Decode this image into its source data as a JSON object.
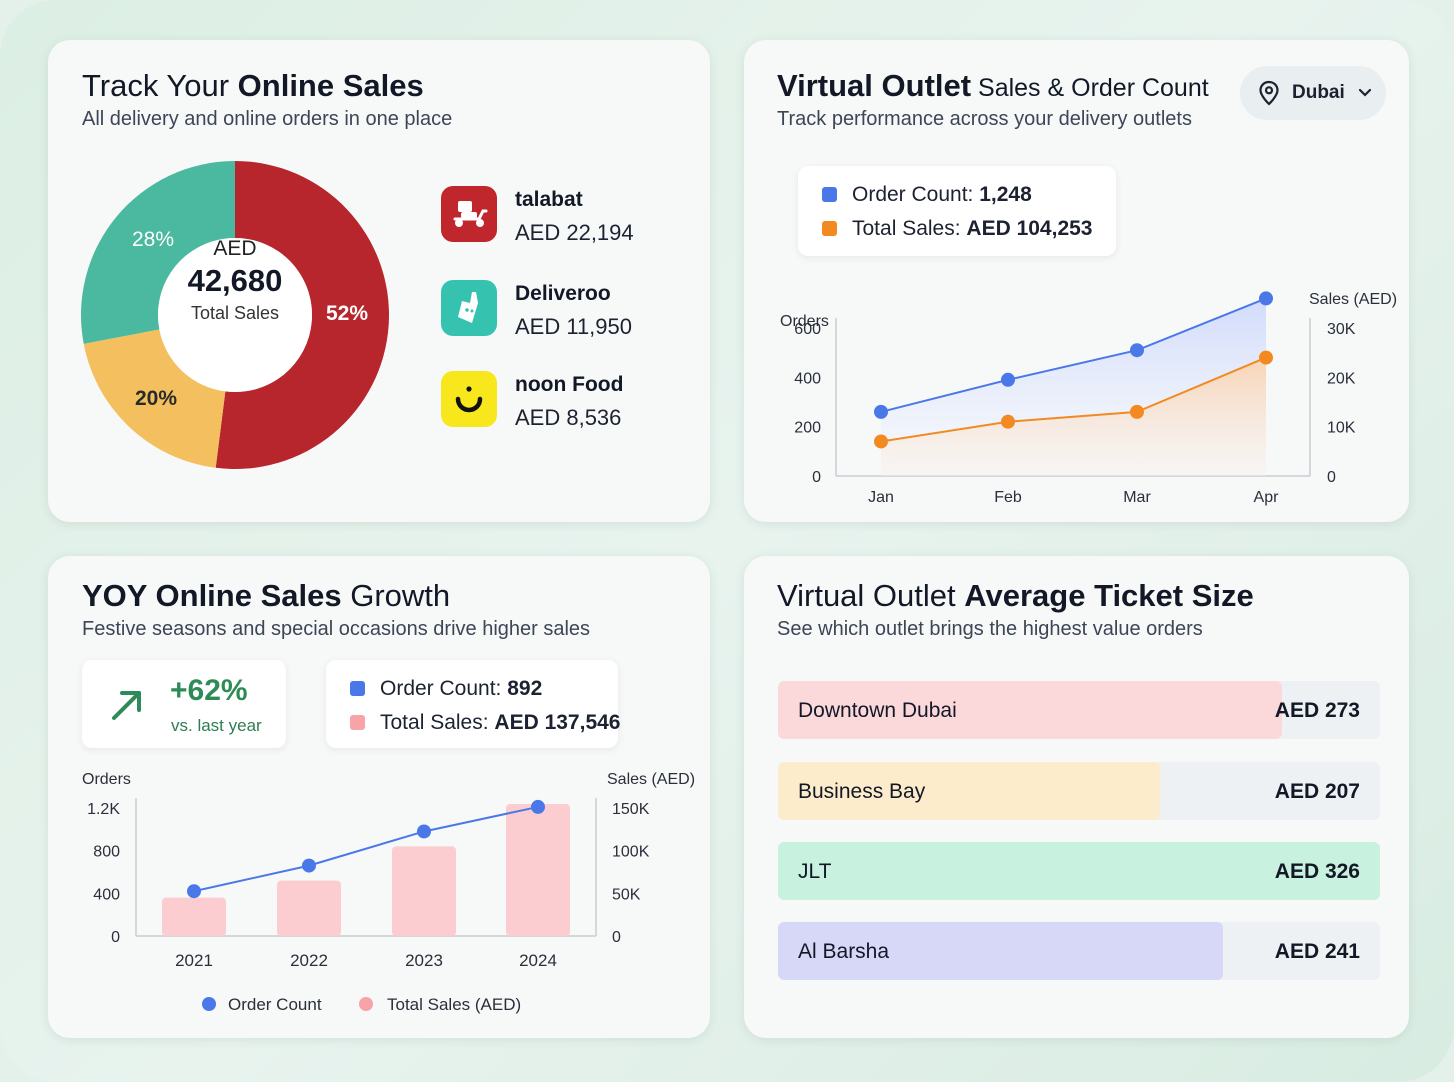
{
  "colors": {
    "talabat": "#b8262d",
    "deliveroo": "#4bb9a0",
    "noon": "#f4c05f",
    "order_count": "#4a78e8",
    "total_sales_orange": "#f28a21",
    "total_sales_pink": "#f8a3a7"
  },
  "card1": {
    "title_light": "Track Your ",
    "title_bold": "Online Sales",
    "subtitle": "All delivery and online orders in one place",
    "center_currency": "AED",
    "center_value": "42,680",
    "center_label": "Total Sales",
    "chart_data": {
      "type": "pie",
      "donut": true,
      "slices": [
        {
          "label": "talabat",
          "value": 52,
          "display": "52%"
        },
        {
          "label": "noon Food",
          "value": 20,
          "display": "20%"
        },
        {
          "label": "Deliveroo",
          "value": 28,
          "display": "28%"
        }
      ]
    },
    "platforms": [
      {
        "name": "talabat",
        "value": "AED 22,194",
        "icon": "scooter-icon"
      },
      {
        "name": "Deliveroo",
        "value": "AED 11,950",
        "icon": "kangaroo-icon"
      },
      {
        "name": "noon Food",
        "value": "AED 8,536",
        "icon": "smile-icon"
      }
    ]
  },
  "card2": {
    "title_bold": "Virtual Outlet",
    "title_light": " Sales & Order Count",
    "subtitle": "Track performance across your delivery outlets",
    "dropdown": {
      "selected": "Dubai",
      "icon": "location-pin-icon"
    },
    "summary": {
      "order_label": "Order Count: ",
      "order_value": "1,248",
      "sales_label": "Total Sales: ",
      "sales_value": "AED 104,253"
    },
    "chart_data": {
      "type": "line",
      "categories": [
        "Jan",
        "Feb",
        "Mar",
        "Apr"
      ],
      "ylabel_left": "Orders",
      "ylabel_right": "Sales (AED)",
      "yticks_left": [
        "0",
        "200",
        "400",
        "600"
      ],
      "yticks_right": [
        "0",
        "10K",
        "20K",
        "30K"
      ],
      "ylim_left": [
        0,
        600
      ],
      "ylim_right": [
        0,
        30000
      ],
      "series": [
        {
          "name": "Order Count",
          "axis": "left",
          "values": [
            260,
            390,
            510,
            720
          ]
        },
        {
          "name": "Total Sales (AED)",
          "axis": "right",
          "values": [
            7000,
            11000,
            13000,
            24000
          ]
        }
      ],
      "legend": [
        "Order Count",
        "Total Sales (AED)"
      ],
      "legend_position": "bottom"
    }
  },
  "card3": {
    "title_bold": "YOY Online Sales",
    "title_light": " Growth",
    "subtitle": "Festive seasons and special occasions drive higher sales",
    "growth_value": "+62%",
    "growth_label": "vs. last year",
    "growth_icon": "arrow-up-right-icon",
    "summary": {
      "order_label": "Order Count: ",
      "order_value": "892",
      "sales_label": "Total Sales: ",
      "sales_value": "AED 137,546"
    },
    "chart_data": {
      "type": "bar",
      "categories": [
        "2021",
        "2022",
        "2023",
        "2024"
      ],
      "ylabel_left": "Orders",
      "ylabel_right": "Sales (AED)",
      "yticks_left": [
        "0",
        "400",
        "800",
        "1.2K"
      ],
      "yticks_right": [
        "0",
        "50K",
        "100K",
        "150K"
      ],
      "ylim_left": [
        0,
        1200
      ],
      "ylim_right": [
        0,
        150000
      ],
      "series": [
        {
          "name": "Total Sales (AED)",
          "kind": "bar",
          "axis": "right",
          "values": [
            45000,
            65000,
            105000,
            158000
          ]
        },
        {
          "name": "Order Count",
          "kind": "line",
          "axis": "left",
          "values": [
            420,
            660,
            980,
            1210
          ]
        }
      ],
      "legend": [
        "Order Count",
        "Total Sales (AED)"
      ],
      "legend_position": "bottom"
    }
  },
  "card4": {
    "title_light": "Virtual Outlet ",
    "title_bold": "Average Ticket Size",
    "subtitle": "See which outlet brings the highest value orders",
    "outlets": [
      {
        "name": "Downtown Dubai",
        "value": "AED 273",
        "amount": 273,
        "color": "#fbd9db"
      },
      {
        "name": "Business Bay",
        "value": "AED 207",
        "amount": 207,
        "color": "#fdeccb"
      },
      {
        "name": "JLT",
        "value": "AED 326",
        "amount": 326,
        "color": "#c9f1df"
      },
      {
        "name": "Al Barsha",
        "value": "AED 241",
        "amount": 241,
        "color": "#d7d7f7"
      }
    ]
  }
}
